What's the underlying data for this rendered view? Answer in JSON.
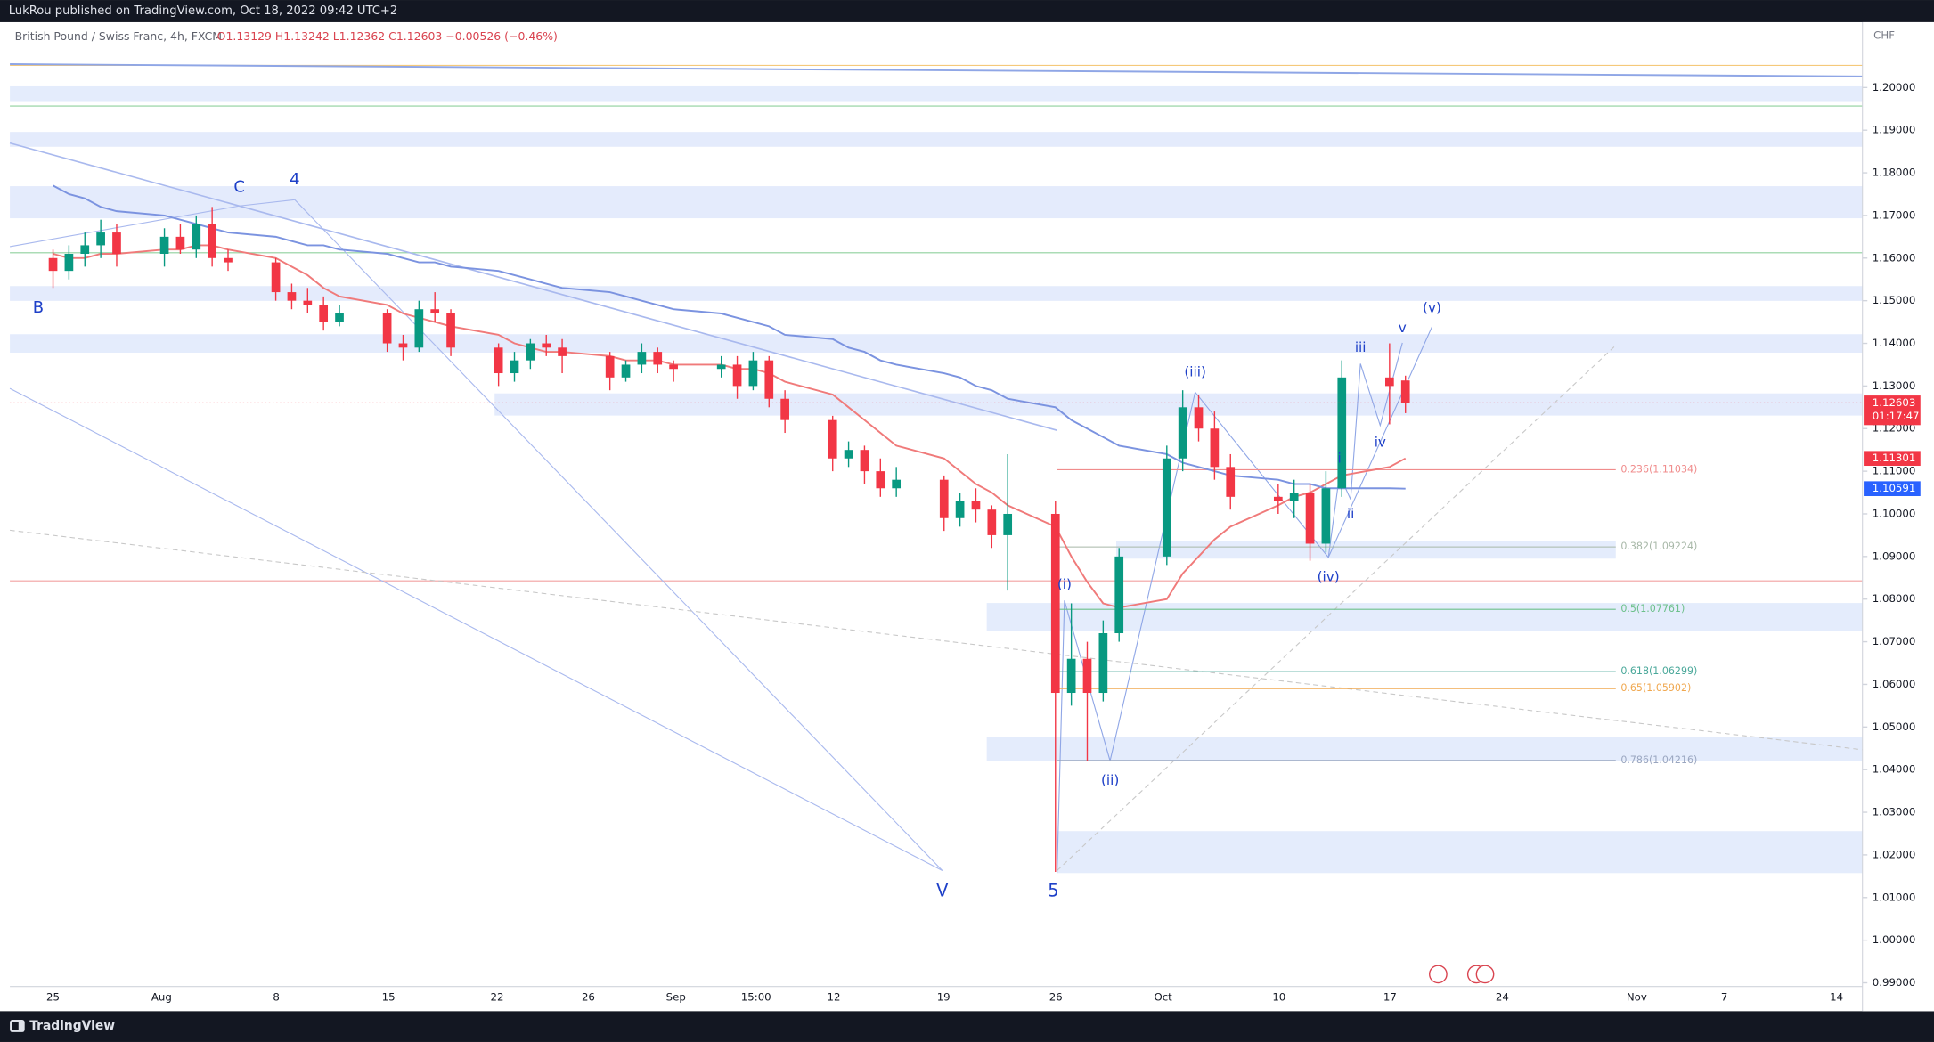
{
  "header": {
    "author_line": "LukRou published on TradingView.com, Oct 18, 2022 09:42 UTC+2",
    "symbol": "British Pound / Swiss Franc, 4h, FXCM",
    "ohlc": "O1.13129 H1.13242 L1.12362 C1.12603 −0.00526 (−0.46%)",
    "currency": "CHF"
  },
  "footer": {
    "brand": "TradingView"
  },
  "chart_data": {
    "type": "candlestick",
    "x_labels": [
      "25",
      "Aug",
      "8",
      "15",
      "22",
      "26",
      "Sep",
      "15:00",
      "12",
      "19",
      "26",
      "Oct",
      "10",
      "17",
      "24",
      "Nov",
      "7",
      "14"
    ],
    "ylim": [
      0.98913,
      1.21533
    ],
    "yticks": [
      {
        "value": 0.99,
        "label": "0.99000"
      },
      {
        "value": 1.0,
        "label": "1.00000"
      },
      {
        "value": 1.01,
        "label": "1.01000"
      },
      {
        "value": 1.02,
        "label": "1.02000"
      },
      {
        "value": 1.03,
        "label": "1.03000"
      },
      {
        "value": 1.04,
        "label": "1.04000"
      },
      {
        "value": 1.05,
        "label": "1.05000"
      },
      {
        "value": 1.06,
        "label": "1.06000"
      },
      {
        "value": 1.07,
        "label": "1.07000"
      },
      {
        "value": 1.08,
        "label": "1.08000"
      },
      {
        "value": 1.09,
        "label": "1.09000"
      },
      {
        "value": 1.1,
        "label": "1.10000"
      },
      {
        "value": 1.11,
        "label": "1.11000"
      },
      {
        "value": 1.12,
        "label": "1.12000"
      },
      {
        "value": 1.13,
        "label": "1.13000"
      },
      {
        "value": 1.14,
        "label": "1.14000"
      },
      {
        "value": 1.15,
        "label": "1.15000"
      },
      {
        "value": 1.16,
        "label": "1.16000"
      },
      {
        "value": 1.17,
        "label": "1.17000"
      },
      {
        "value": 1.18,
        "label": "1.18000"
      },
      {
        "value": 1.19,
        "label": "1.19000"
      },
      {
        "value": 1.2,
        "label": "1.20000"
      }
    ],
    "up_color": "#089981",
    "down_color": "#f23645",
    "open": [
      1.16,
      1.157,
      1.161,
      1.163,
      1.166,
      1.161,
      1.165,
      1.162,
      1.168,
      1.16,
      1.159,
      1.152,
      1.15,
      1.149,
      1.145,
      1.147,
      1.14,
      1.139,
      1.148,
      1.147,
      1.139,
      1.133,
      1.136,
      1.14,
      1.139,
      1.137,
      1.132,
      1.135,
      1.138,
      1.135,
      1.134,
      1.135,
      1.13,
      1.136,
      1.127,
      1.122,
      1.113,
      1.115,
      1.11,
      1.106,
      1.108,
      1.099,
      1.103,
      1.101,
      1.095,
      1.1,
      1.058,
      1.066,
      1.058,
      1.072,
      1.09,
      1.113,
      1.125,
      1.12,
      1.111,
      1.104,
      1.103,
      1.105,
      1.093,
      1.106,
      1.132,
      1.13129
    ],
    "high": [
      1.162,
      1.163,
      1.166,
      1.169,
      1.168,
      1.167,
      1.168,
      1.17,
      1.172,
      1.162,
      1.16,
      1.154,
      1.153,
      1.151,
      1.149,
      1.148,
      1.142,
      1.15,
      1.152,
      1.148,
      1.14,
      1.138,
      1.141,
      1.142,
      1.141,
      1.138,
      1.136,
      1.14,
      1.139,
      1.136,
      1.137,
      1.137,
      1.138,
      1.137,
      1.129,
      1.123,
      1.117,
      1.116,
      1.113,
      1.111,
      1.109,
      1.105,
      1.106,
      1.102,
      1.114,
      1.103,
      1.079,
      1.07,
      1.075,
      1.092,
      1.116,
      1.129,
      1.128,
      1.124,
      1.114,
      1.107,
      1.108,
      1.107,
      1.11,
      1.136,
      1.14,
      1.13242
    ],
    "low": [
      1.153,
      1.155,
      1.158,
      1.16,
      1.158,
      1.158,
      1.161,
      1.16,
      1.158,
      1.157,
      1.15,
      1.148,
      1.147,
      1.143,
      1.144,
      1.138,
      1.136,
      1.138,
      1.145,
      1.137,
      1.13,
      1.131,
      1.134,
      1.137,
      1.133,
      1.129,
      1.131,
      1.133,
      1.133,
      1.131,
      1.132,
      1.127,
      1.129,
      1.125,
      1.119,
      1.11,
      1.111,
      1.107,
      1.104,
      1.104,
      1.096,
      1.097,
      1.098,
      1.092,
      1.082,
      1.016,
      1.055,
      1.042,
      1.056,
      1.07,
      1.088,
      1.11,
      1.117,
      1.108,
      1.101,
      1.1,
      1.099,
      1.089,
      1.091,
      1.104,
      1.121,
      1.12362
    ],
    "close": [
      1.157,
      1.161,
      1.163,
      1.166,
      1.161,
      1.165,
      1.162,
      1.168,
      1.16,
      1.159,
      1.152,
      1.15,
      1.149,
      1.145,
      1.147,
      1.14,
      1.139,
      1.148,
      1.147,
      1.139,
      1.133,
      1.136,
      1.14,
      1.139,
      1.137,
      1.132,
      1.135,
      1.138,
      1.135,
      1.134,
      1.135,
      1.13,
      1.136,
      1.127,
      1.122,
      1.113,
      1.115,
      1.11,
      1.106,
      1.108,
      1.099,
      1.103,
      1.101,
      1.095,
      1.1,
      1.058,
      1.066,
      1.058,
      1.072,
      1.09,
      1.113,
      1.125,
      1.12,
      1.111,
      1.104,
      1.103,
      1.105,
      1.093,
      1.106,
      1.132,
      1.13,
      1.12603
    ],
    "countdown": "01:17:47",
    "overlays": [
      {
        "color": "#f07a7a",
        "values": [
          1.161,
          1.16,
          1.16,
          1.161,
          1.161,
          1.162,
          1.162,
          1.163,
          1.163,
          1.162,
          1.16,
          1.158,
          1.156,
          1.153,
          1.151,
          1.149,
          1.147,
          1.146,
          1.145,
          1.144,
          1.142,
          1.14,
          1.139,
          1.138,
          1.138,
          1.137,
          1.136,
          1.136,
          1.136,
          1.135,
          1.135,
          1.134,
          1.134,
          1.133,
          1.131,
          1.128,
          1.125,
          1.122,
          1.119,
          1.116,
          1.113,
          1.11,
          1.107,
          1.105,
          1.102,
          1.097,
          1.09,
          1.084,
          1.079,
          1.078,
          1.08,
          1.086,
          1.09,
          1.094,
          1.097,
          1.102,
          1.104,
          1.105,
          1.107,
          1.109,
          1.111,
          1.11301
        ]
      },
      {
        "color": "#7b93e0",
        "values": [
          1.177,
          1.175,
          1.174,
          1.172,
          1.171,
          1.17,
          1.169,
          1.168,
          1.167,
          1.166,
          1.165,
          1.164,
          1.163,
          1.163,
          1.162,
          1.161,
          1.16,
          1.159,
          1.159,
          1.158,
          1.157,
          1.156,
          1.155,
          1.154,
          1.153,
          1.152,
          1.151,
          1.15,
          1.149,
          1.148,
          1.147,
          1.146,
          1.145,
          1.144,
          1.142,
          1.141,
          1.139,
          1.138,
          1.136,
          1.135,
          1.133,
          1.132,
          1.13,
          1.129,
          1.127,
          1.125,
          1.122,
          1.12,
          1.118,
          1.116,
          1.114,
          1.112,
          1.111,
          1.11,
          1.109,
          1.108,
          1.107,
          1.107,
          1.106,
          1.106,
          1.106,
          1.10591
        ]
      }
    ],
    "fib_levels": [
      {
        "label": "0.236(1.11034)",
        "value": 1.11034,
        "color": "#f08c8c"
      },
      {
        "label": "0.382(1.09224)",
        "value": 1.09224,
        "color": "#a8b8a8"
      },
      {
        "label": "0.5(1.07761)",
        "value": 1.07761,
        "color": "#6cc08a"
      },
      {
        "label": "0.618(1.06299)",
        "value": 1.06299,
        "color": "#4aa89a"
      },
      {
        "label": "0.65(1.05902)",
        "value": 1.05902,
        "color": "#f0a850"
      },
      {
        "label": "0.786(1.04216)",
        "value": 1.04216,
        "color": "#9aa6c0"
      }
    ],
    "wave_labels": [
      "B",
      "C",
      "4",
      "V",
      "5",
      "(i)",
      "(ii)",
      "(iii)",
      "(iv)",
      "(v)",
      "i",
      "ii",
      "iii",
      "iv",
      "v"
    ]
  }
}
